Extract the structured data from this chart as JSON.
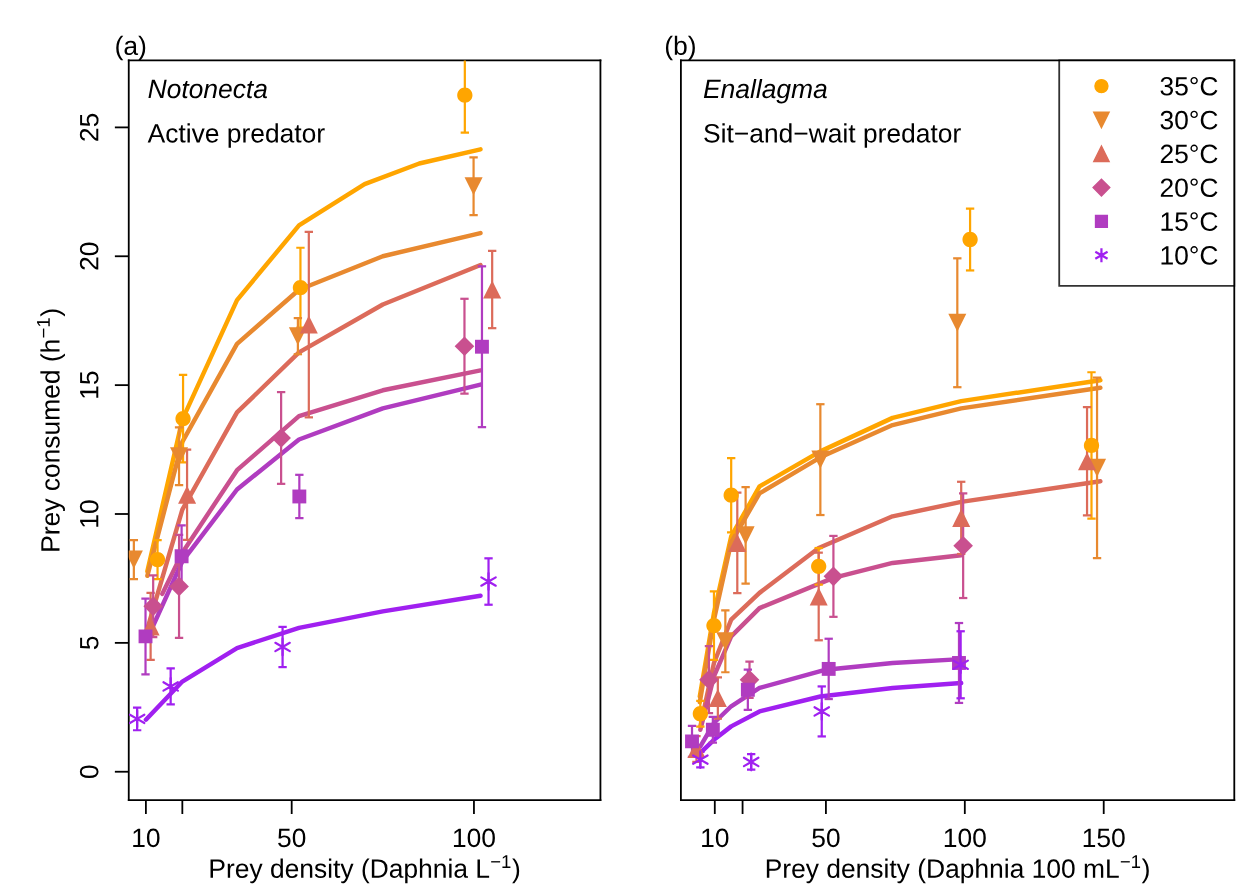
{
  "chart_data": [
    {
      "type": "scatter",
      "title": "(a)",
      "annotations": [
        "Notonecta",
        "Active predator"
      ],
      "xlabel": "Prey density (Daphnia L$^{−1}$)",
      "ylabel": "Prey consumed (h$^{−1}$)",
      "xlim": [
        5.3,
        134.7
      ],
      "ylim": [
        -1.1,
        27.6
      ],
      "xticks": [
        10,
        {
          "value": 20,
          "label": null
        },
        50,
        100
      ],
      "yticks": [
        0,
        5,
        10,
        15,
        20,
        25
      ],
      "legend": false,
      "grid": false,
      "series": [
        {
          "type": "line",
          "color": "#ffa500",
          "marker": "none",
          "line_style": "solid",
          "x": [
            10.4,
            20,
            35,
            52,
            70,
            85,
            101.8
          ],
          "values": [
            7.78,
            13.66,
            18.3,
            21.2,
            22.8,
            23.6,
            24.15
          ]
        },
        {
          "type": "line",
          "color": "#e8892f",
          "marker": "none",
          "line_style": "solid",
          "x": [
            10.4,
            20,
            35,
            52,
            75,
            101.8
          ],
          "values": [
            7.6,
            12.8,
            16.6,
            18.7,
            20.0,
            20.9
          ]
        },
        {
          "type": "line",
          "color": "#dc6b5a",
          "marker": "none",
          "line_style": "solid",
          "x": [
            10.6,
            20,
            35,
            52,
            75,
            101.8
          ],
          "values": [
            5.64,
            10.17,
            13.94,
            16.27,
            18.13,
            19.66
          ]
        },
        {
          "type": "line",
          "color": "#c9508f",
          "marker": "none",
          "line_style": "solid",
          "x": [
            14.5,
            20,
            35,
            52,
            75,
            101.8
          ],
          "values": [
            6.9,
            8.5,
            11.7,
            13.8,
            14.8,
            15.57
          ]
        },
        {
          "type": "line",
          "color": "#b03cc0",
          "marker": "none",
          "line_style": "solid",
          "x": [
            10.2,
            20,
            35,
            52,
            75,
            101.8
          ],
          "values": [
            5.1,
            8.16,
            10.95,
            12.89,
            14.1,
            15.02
          ]
        },
        {
          "type": "line",
          "color": "#a020f0",
          "marker": "none",
          "line_style": "solid",
          "x": [
            10,
            20,
            35,
            52,
            75,
            101.8
          ],
          "values": [
            2.02,
            3.5,
            4.8,
            5.58,
            6.22,
            6.83
          ]
        },
        {
          "color": "#ffa500",
          "marker": "circle",
          "x": [
            13.2,
            20.2,
            52.4,
            97.5
          ],
          "values": [
            8.23,
            13.7,
            18.78,
            26.25
          ],
          "errors": [
            0.76,
            1.7,
            1.55,
            1.45
          ]
        },
        {
          "color": "#e8892f",
          "marker": "triangle-down",
          "x": [
            6.7,
            19.1,
            51.7,
            99.9
          ],
          "values": [
            8.23,
            12.24,
            16.9,
            22.72
          ],
          "errors": [
            0.76,
            1.12,
            0.7,
            1.12
          ]
        },
        {
          "color": "#dc6b5a",
          "marker": "triangle",
          "x": [
            11.3,
            21.3,
            54.7,
            105
          ],
          "values": [
            5.64,
            10.75,
            17.35,
            18.71
          ],
          "errors": [
            1.3,
            1.75,
            3.6,
            1.5
          ]
        },
        {
          "color": "#c9508f",
          "marker": "diamond",
          "x": [
            12,
            19.1,
            47.1,
            97.4
          ],
          "values": [
            6.42,
            7.19,
            12.95,
            16.51
          ],
          "errors": [
            1.2,
            2.0,
            1.78,
            1.84
          ]
        },
        {
          "color": "#b03cc0",
          "marker": "square",
          "x": [
            9.9,
            19.8,
            52.1,
            102.2
          ],
          "values": [
            5.25,
            8.36,
            10.68,
            16.49
          ],
          "errors": [
            1.47,
            1.2,
            0.84,
            3.12
          ]
        },
        {
          "color": "#a020f0",
          "marker": "cross",
          "x": [
            7.6,
            16.8,
            47.5,
            104
          ],
          "values": [
            2.05,
            3.31,
            4.84,
            7.38
          ],
          "errors": [
            0.44,
            0.7,
            0.78,
            0.9
          ]
        }
      ]
    },
    {
      "type": "scatter",
      "title": "(b)",
      "annotations": [
        "Enallagma",
        "Sit−and−wait predator"
      ],
      "xlabel": "Prey density (Daphnia 100 mL$^{−1}$)",
      "xlim": [
        -2.2,
        197
      ],
      "ylim": [
        -1.1,
        27.6
      ],
      "xticks": [
        10,
        {
          "value": 20,
          "label": null
        },
        50,
        100,
        150
      ],
      "tick_labels": "x",
      "legend": "top right",
      "grid": false,
      "series": [
        {
          "type": "line",
          "color": "#ffa500",
          "marker": "none",
          "line_style": "solid",
          "x": [
            4.6,
            9.7,
            15.9,
            26.1,
            48,
            74,
            98.7,
            148.8
          ],
          "values": [
            2.92,
            6.16,
            9.13,
            11.07,
            12.43,
            13.73,
            14.38,
            15.19
          ]
        },
        {
          "type": "line",
          "color": "#e8892f",
          "marker": "none",
          "line_style": "solid",
          "x": [
            4.6,
            9.7,
            15.9,
            26.1,
            48,
            74,
            98.7,
            148.8
          ],
          "values": [
            2.7,
            5.9,
            8.9,
            10.8,
            12.2,
            13.45,
            14.1,
            14.9
          ]
        },
        {
          "type": "line",
          "color": "#dc6b5a",
          "marker": "none",
          "line_style": "solid",
          "x": [
            4.8,
            9.7,
            15.9,
            26.1,
            47.4,
            74,
            98.7,
            148.8
          ],
          "values": [
            1.76,
            4.22,
            5.9,
            6.94,
            8.68,
            9.91,
            10.47,
            11.27
          ]
        },
        {
          "type": "line",
          "color": "#c9508f",
          "marker": "none",
          "line_style": "solid",
          "x": [
            4.8,
            9.7,
            15.9,
            26.1,
            52.7,
            74,
            98.7
          ],
          "values": [
            1.63,
            3.7,
            5.25,
            6.35,
            7.52,
            8.1,
            8.4
          ]
        },
        {
          "type": "line",
          "color": "#b03cc0",
          "marker": "none",
          "line_style": "solid",
          "x": [
            4.8,
            9.7,
            15.9,
            26.1,
            50,
            74,
            98.7
          ],
          "values": [
            0.98,
            1.89,
            2.54,
            3.25,
            3.96,
            4.22,
            4.37
          ]
        },
        {
          "type": "line",
          "color": "#a020f0",
          "marker": "none",
          "line_style": "solid",
          "x": [
            4.8,
            9.7,
            15.9,
            26.1,
            48,
            74,
            98.7
          ],
          "values": [
            0.73,
            1.24,
            1.76,
            2.34,
            2.92,
            3.25,
            3.44
          ]
        },
        {
          "name": "35°C",
          "color": "#ffa500",
          "marker": "circle",
          "x": [
            4.8,
            9.7,
            15.9,
            47.4,
            101.9,
            145.6
          ],
          "values": [
            2.25,
            5.67,
            10.73,
            7.97,
            20.65,
            12.66
          ],
          "errors": [
            0.5,
            1.33,
            1.44,
            0.71,
            1.2,
            2.84
          ]
        },
        {
          "name": "30°C",
          "color": "#e8892f",
          "marker": "triangle-down",
          "x": [
            13.8,
            21.1,
            48,
            97.3,
            147.6
          ],
          "values": [
            5.06,
            9.17,
            12.11,
            17.42,
            11.79
          ],
          "errors": [
            1.2,
            1.87,
            2.15,
            2.5,
            3.5
          ]
        },
        {
          "name": "25°C",
          "color": "#dc6b5a",
          "marker": "triangle",
          "x": [
            3.4,
            11.1,
            18.1,
            47.4,
            98.7,
            144
          ],
          "values": [
            0.88,
            2.86,
            8.88,
            6.8,
            9.85,
            12.05
          ],
          "errors": [
            0.5,
            0.8,
            1.95,
            1.7,
            1.4,
            2.1
          ]
        },
        {
          "name": "20°C",
          "color": "#c9508f",
          "marker": "diamond",
          "x": [
            7.9,
            22.5,
            52.7,
            99.4
          ],
          "values": [
            3.57,
            3.57,
            7.58,
            8.77
          ],
          "errors": [
            1.3,
            0.7,
            1.57,
            2.03
          ]
        },
        {
          "name": "15°C",
          "color": "#b03cc0",
          "marker": "square",
          "x": [
            1.8,
            9.3,
            21.9,
            51,
            97.9
          ],
          "values": [
            1.18,
            1.63,
            3.18,
            3.99,
            4.22
          ],
          "errors": [
            0.6,
            0.5,
            0.78,
            1.17,
            1.55
          ]
        },
        {
          "name": "10°C",
          "color": "#a020f0",
          "marker": "cross",
          "x": [
            4.8,
            23.1,
            48.5,
            98.5
          ],
          "values": [
            0.47,
            0.38,
            2.34,
            4.15
          ],
          "errors": [
            0.3,
            0.3,
            0.97,
            1.3
          ]
        }
      ]
    }
  ]
}
